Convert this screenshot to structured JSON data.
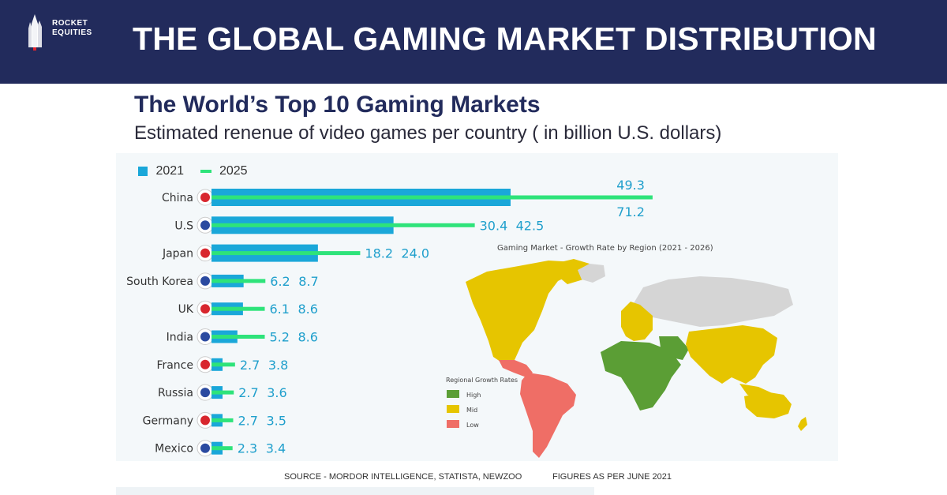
{
  "brand": {
    "line1": "ROCKET",
    "line2": "EQUITIES"
  },
  "header": {
    "title": "THE GLOBAL GAMING MARKET DISTRIBUTION"
  },
  "colors": {
    "header_bg": "#222b5c",
    "bar_2021": "#1aa7d9",
    "line_2025": "#2ee37a",
    "high": "#5b9e35",
    "mid": "#e6c500",
    "low": "#ef6e66",
    "nodata": "#d5d5d5"
  },
  "chart_data": {
    "type": "bar",
    "title": "The World’s Top 10 Gaming Markets",
    "subtitle": "Estimated renenue of video games per country ( in billion U.S. dollars)",
    "categories": [
      "China",
      "U.S",
      "Japan",
      "South Korea",
      "UK",
      "India",
      "France",
      "Russia",
      "Germany",
      "Mexico"
    ],
    "series": [
      {
        "name": "2021",
        "values": [
          49.3,
          30.4,
          18.2,
          6.2,
          6.1,
          5.2,
          2.7,
          2.7,
          2.7,
          2.3
        ]
      },
      {
        "name": "2025",
        "values": [
          71.2,
          42.5,
          24.0,
          8.7,
          8.6,
          8.6,
          3.8,
          3.6,
          3.5,
          3.4
        ]
      }
    ],
    "value_labels": [
      [
        "49.3",
        "71.2"
      ],
      [
        "30.4",
        "42.5"
      ],
      [
        "18.2",
        "24.0"
      ],
      [
        "6.2",
        "8.7"
      ],
      [
        "6.1",
        "8.6"
      ],
      [
        "5.2",
        "8.6"
      ],
      [
        "2.7",
        "3.8"
      ],
      [
        "2.7",
        "3.6"
      ],
      [
        "2.7",
        "3.5"
      ],
      [
        "2.3",
        "3.4"
      ]
    ],
    "legend": [
      "2021",
      "2025"
    ],
    "legend_position": "top-left",
    "xlim": [
      0,
      75
    ]
  },
  "map": {
    "title": "Gaming Market - Growth Rate by Region (2021 - 2026)",
    "legend_title": "Regional Growth Rates",
    "legend": [
      {
        "label": "High",
        "color": "#5b9e35"
      },
      {
        "label": "Mid",
        "color": "#e6c500"
      },
      {
        "label": "Low",
        "color": "#ef6e66"
      }
    ]
  },
  "footer": {
    "source": "SOURCE -  MORDOR INTELLIGENCE, STATISTA, NEWZOO",
    "figures": "FIGURES AS PER JUNE 2021"
  }
}
